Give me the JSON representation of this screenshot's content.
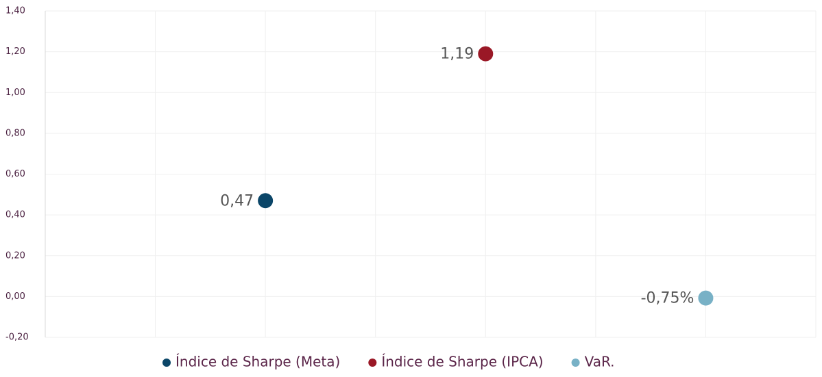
{
  "chart_data": {
    "type": "scatter",
    "series": [
      {
        "name": "Índice de Sharpe (Meta)",
        "color": "#0b4668",
        "x": [
          2
        ],
        "values": [
          0.47
        ],
        "value_labels": [
          "0,47"
        ]
      },
      {
        "name": "Índice de Sharpe (IPCA)",
        "color": "#9a1826",
        "x": [
          4
        ],
        "values": [
          1.19
        ],
        "value_labels": [
          "1,19"
        ]
      },
      {
        "name": "VaR.",
        "color": "#78b1c6",
        "x": [
          6
        ],
        "values": [
          -0.0075
        ],
        "value_labels": [
          "-0,75%"
        ]
      }
    ],
    "xlim": [
      0,
      7
    ],
    "xticks": [
      0,
      1,
      2,
      3,
      4,
      5,
      6,
      7
    ],
    "ylim": [
      -0.2,
      1.4
    ],
    "yticks": [
      {
        "value": -0.2,
        "label": "-0,20"
      },
      {
        "value": 0,
        "label": "0,00"
      },
      {
        "value": 0.2,
        "label": "0,20"
      },
      {
        "value": 0.4,
        "label": "0,40"
      },
      {
        "value": 0.6,
        "label": "0,60"
      },
      {
        "value": 0.8,
        "label": "0,80"
      },
      {
        "value": 1.0,
        "label": "1,00"
      },
      {
        "value": 1.2,
        "label": "1,20"
      },
      {
        "value": 1.4,
        "label": "1,40"
      }
    ],
    "grid": true,
    "legend": "bottom"
  }
}
